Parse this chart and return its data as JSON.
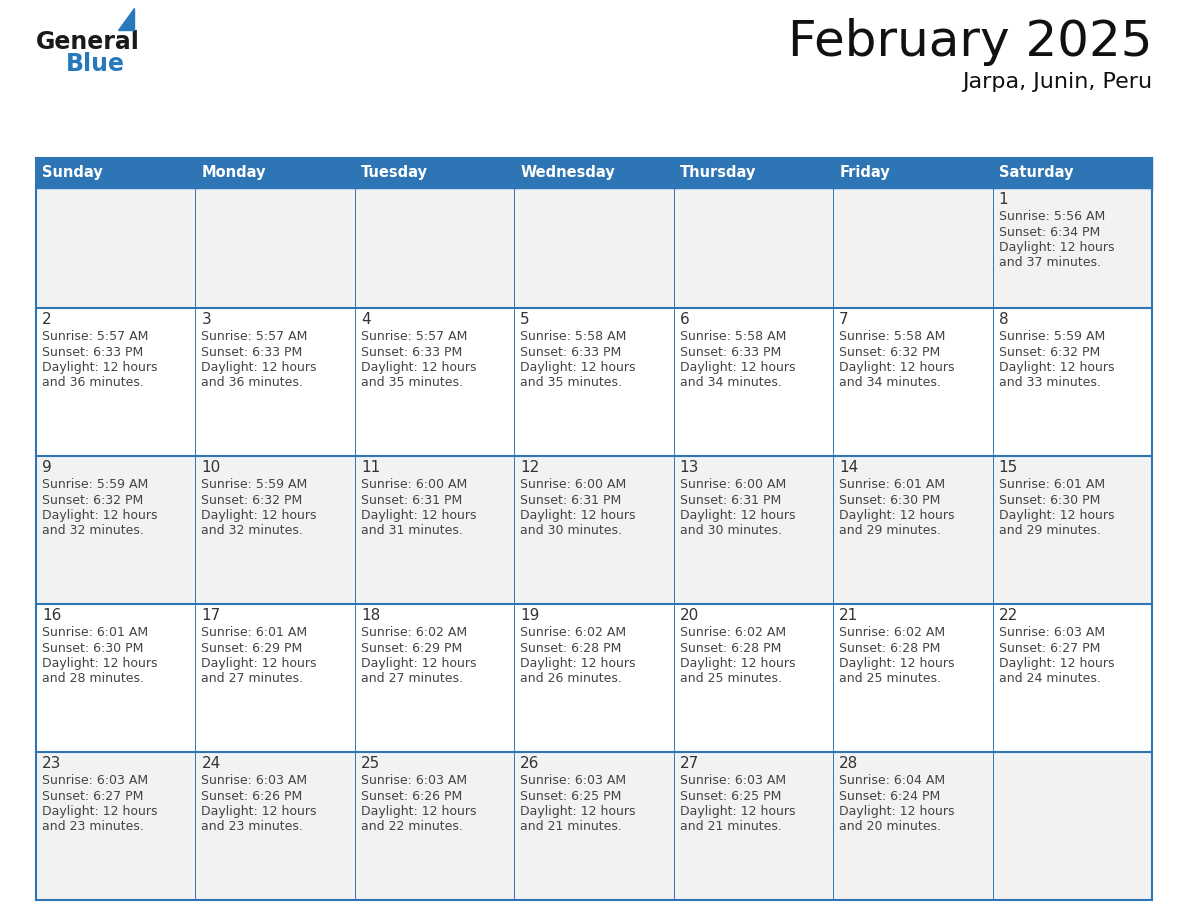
{
  "title": "February 2025",
  "subtitle": "Jarpa, Junin, Peru",
  "header_color": "#2E75B6",
  "header_text_color": "#FFFFFF",
  "cell_bg_even": "#F2F2F2",
  "cell_bg_odd": "#FFFFFF",
  "border_color": "#2E75B6",
  "day_number_color": "#333333",
  "cell_text_color": "#444444",
  "days_of_week": [
    "Sunday",
    "Monday",
    "Tuesday",
    "Wednesday",
    "Thursday",
    "Friday",
    "Saturday"
  ],
  "logo_color1": "#1a1a1a",
  "logo_color2": "#2878BE",
  "triangle_color": "#2878BE",
  "calendar_data": [
    [
      null,
      null,
      null,
      null,
      null,
      null,
      {
        "day": "1",
        "sunrise": "5:56 AM",
        "sunset": "6:34 PM",
        "daylight": "12 hours",
        "daylight2": "and 37 minutes."
      }
    ],
    [
      {
        "day": "2",
        "sunrise": "5:57 AM",
        "sunset": "6:33 PM",
        "daylight": "12 hours",
        "daylight2": "and 36 minutes."
      },
      {
        "day": "3",
        "sunrise": "5:57 AM",
        "sunset": "6:33 PM",
        "daylight": "12 hours",
        "daylight2": "and 36 minutes."
      },
      {
        "day": "4",
        "sunrise": "5:57 AM",
        "sunset": "6:33 PM",
        "daylight": "12 hours",
        "daylight2": "and 35 minutes."
      },
      {
        "day": "5",
        "sunrise": "5:58 AM",
        "sunset": "6:33 PM",
        "daylight": "12 hours",
        "daylight2": "and 35 minutes."
      },
      {
        "day": "6",
        "sunrise": "5:58 AM",
        "sunset": "6:33 PM",
        "daylight": "12 hours",
        "daylight2": "and 34 minutes."
      },
      {
        "day": "7",
        "sunrise": "5:58 AM",
        "sunset": "6:32 PM",
        "daylight": "12 hours",
        "daylight2": "and 34 minutes."
      },
      {
        "day": "8",
        "sunrise": "5:59 AM",
        "sunset": "6:32 PM",
        "daylight": "12 hours",
        "daylight2": "and 33 minutes."
      }
    ],
    [
      {
        "day": "9",
        "sunrise": "5:59 AM",
        "sunset": "6:32 PM",
        "daylight": "12 hours",
        "daylight2": "and 32 minutes."
      },
      {
        "day": "10",
        "sunrise": "5:59 AM",
        "sunset": "6:32 PM",
        "daylight": "12 hours",
        "daylight2": "and 32 minutes."
      },
      {
        "day": "11",
        "sunrise": "6:00 AM",
        "sunset": "6:31 PM",
        "daylight": "12 hours",
        "daylight2": "and 31 minutes."
      },
      {
        "day": "12",
        "sunrise": "6:00 AM",
        "sunset": "6:31 PM",
        "daylight": "12 hours",
        "daylight2": "and 30 minutes."
      },
      {
        "day": "13",
        "sunrise": "6:00 AM",
        "sunset": "6:31 PM",
        "daylight": "12 hours",
        "daylight2": "and 30 minutes."
      },
      {
        "day": "14",
        "sunrise": "6:01 AM",
        "sunset": "6:30 PM",
        "daylight": "12 hours",
        "daylight2": "and 29 minutes."
      },
      {
        "day": "15",
        "sunrise": "6:01 AM",
        "sunset": "6:30 PM",
        "daylight": "12 hours",
        "daylight2": "and 29 minutes."
      }
    ],
    [
      {
        "day": "16",
        "sunrise": "6:01 AM",
        "sunset": "6:30 PM",
        "daylight": "12 hours",
        "daylight2": "and 28 minutes."
      },
      {
        "day": "17",
        "sunrise": "6:01 AM",
        "sunset": "6:29 PM",
        "daylight": "12 hours",
        "daylight2": "and 27 minutes."
      },
      {
        "day": "18",
        "sunrise": "6:02 AM",
        "sunset": "6:29 PM",
        "daylight": "12 hours",
        "daylight2": "and 27 minutes."
      },
      {
        "day": "19",
        "sunrise": "6:02 AM",
        "sunset": "6:28 PM",
        "daylight": "12 hours",
        "daylight2": "and 26 minutes."
      },
      {
        "day": "20",
        "sunrise": "6:02 AM",
        "sunset": "6:28 PM",
        "daylight": "12 hours",
        "daylight2": "and 25 minutes."
      },
      {
        "day": "21",
        "sunrise": "6:02 AM",
        "sunset": "6:28 PM",
        "daylight": "12 hours",
        "daylight2": "and 25 minutes."
      },
      {
        "day": "22",
        "sunrise": "6:03 AM",
        "sunset": "6:27 PM",
        "daylight": "12 hours",
        "daylight2": "and 24 minutes."
      }
    ],
    [
      {
        "day": "23",
        "sunrise": "6:03 AM",
        "sunset": "6:27 PM",
        "daylight": "12 hours",
        "daylight2": "and 23 minutes."
      },
      {
        "day": "24",
        "sunrise": "6:03 AM",
        "sunset": "6:26 PM",
        "daylight": "12 hours",
        "daylight2": "and 23 minutes."
      },
      {
        "day": "25",
        "sunrise": "6:03 AM",
        "sunset": "6:26 PM",
        "daylight": "12 hours",
        "daylight2": "and 22 minutes."
      },
      {
        "day": "26",
        "sunrise": "6:03 AM",
        "sunset": "6:25 PM",
        "daylight": "12 hours",
        "daylight2": "and 21 minutes."
      },
      {
        "day": "27",
        "sunrise": "6:03 AM",
        "sunset": "6:25 PM",
        "daylight": "12 hours",
        "daylight2": "and 21 minutes."
      },
      {
        "day": "28",
        "sunrise": "6:04 AM",
        "sunset": "6:24 PM",
        "daylight": "12 hours",
        "daylight2": "and 20 minutes."
      },
      null
    ]
  ]
}
